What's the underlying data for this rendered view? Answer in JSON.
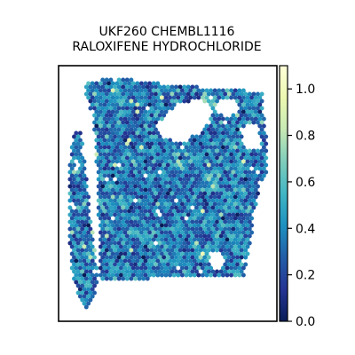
{
  "chart_data": {
    "type": "heatmap",
    "title_lines": [
      "UKF260 CHEMBL1116",
      "RALOXIFENE HYDROCHLORIDE"
    ],
    "xlabel": "",
    "ylabel": "",
    "axis_ticks": "none",
    "colormap": "YlGnBu_r",
    "colorbar": {
      "range": [
        0.0,
        1.1
      ],
      "ticks": [
        0.0,
        0.2,
        0.4,
        0.6,
        0.8,
        1.0
      ],
      "tick_labels": [
        "0.0",
        "0.2",
        "0.4",
        "0.6",
        "0.8",
        "1.0"
      ],
      "colors": [
        "#081d58",
        "#253494",
        "#225ea8",
        "#1d91c0",
        "#41b6c4",
        "#7fcdbb",
        "#c7e9b4",
        "#edf8b1",
        "#ffffd9"
      ]
    },
    "spot_value_distribution": {
      "typical": 0.35,
      "min": 0.0,
      "max": 1.1
    }
  }
}
